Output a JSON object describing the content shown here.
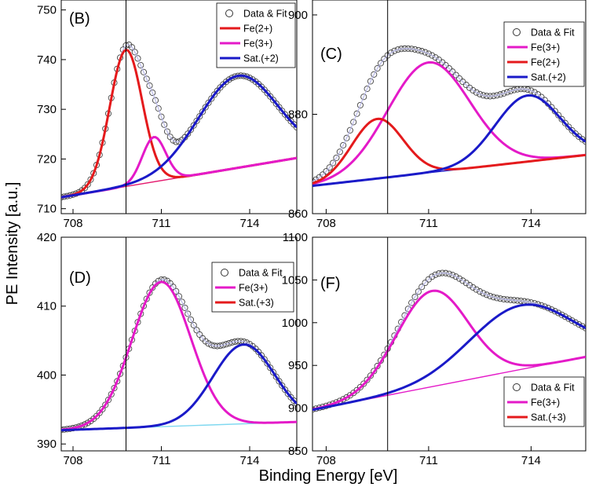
{
  "chart_data": {
    "type": "line",
    "ylabel": "PE Intensity [a.u.]",
    "xlabel": "Binding Energy [eV]",
    "vline_x": 709.8,
    "panels": [
      {
        "id": "B",
        "label": "(B)",
        "xlim": [
          707.6,
          715.6
        ],
        "ylim": [
          709,
          752
        ],
        "xticks": [
          708,
          711,
          714
        ],
        "yticks": [
          710,
          720,
          730,
          740,
          750
        ],
        "legend": [
          {
            "kind": "marker",
            "label": "Data & Fit"
          },
          {
            "kind": "line",
            "label": "Fe(2+)",
            "color": "#e41a1c"
          },
          {
            "kind": "line",
            "label": "Fe(3+)",
            "color": "#e41ac8"
          },
          {
            "kind": "line",
            "label": "Sat.(+2)",
            "color": "#1a1ac8"
          }
        ],
        "background": {
          "x": [
            707.6,
            715.6
          ],
          "y": [
            712.3,
            720.2
          ],
          "color": "#e41a6e"
        },
        "peaks": [
          {
            "name": "Fe(2+)",
            "center": 709.8,
            "sigma": 0.55,
            "amp": 27.5,
            "color": "#e41a1c"
          },
          {
            "name": "Fe(3+)",
            "center": 710.75,
            "sigma": 0.4,
            "amp": 9.0,
            "color": "#e41ac8"
          },
          {
            "name": "Sat.(+2)",
            "center": 713.6,
            "sigma": 1.35,
            "amp": 18.5,
            "color": "#1a1ac8"
          }
        ]
      },
      {
        "id": "C",
        "label": "(C)",
        "xlim": [
          707.6,
          715.6
        ],
        "ylim": [
          860,
          903
        ],
        "xticks": [
          708,
          711,
          714
        ],
        "yticks": [
          860,
          880,
          900
        ],
        "legend": [
          {
            "kind": "marker",
            "label": "Data & Fit"
          },
          {
            "kind": "line",
            "label": "Fe(3+)",
            "color": "#e41ac8"
          },
          {
            "kind": "line",
            "label": "Fe(2+)",
            "color": "#e41a1c"
          },
          {
            "kind": "line",
            "label": "Sat.(+2)",
            "color": "#1a1ac8"
          }
        ],
        "background": {
          "x": [
            707.6,
            715.6
          ],
          "y": [
            865.6,
            871.8
          ],
          "color": "#1a1ac8"
        },
        "peaks": [
          {
            "name": "Fe(3+)",
            "center": 711.0,
            "sigma": 1.2,
            "amp": 22.2,
            "color": "#e41ac8"
          },
          {
            "name": "Fe(2+)",
            "center": 709.5,
            "sigma": 0.75,
            "amp": 12.0,
            "color": "#e41a1c"
          },
          {
            "name": "Sat.(+2)",
            "center": 713.9,
            "sigma": 0.95,
            "amp": 13.3,
            "color": "#1a1ac8"
          }
        ]
      },
      {
        "id": "D",
        "label": "(D)",
        "xlim": [
          707.6,
          715.6
        ],
        "ylim": [
          389,
          420
        ],
        "xticks": [
          708,
          711,
          714
        ],
        "yticks": [
          390,
          400,
          410,
          420
        ],
        "legend": [
          {
            "kind": "marker",
            "label": "Data & Fit"
          },
          {
            "kind": "line",
            "label": "Fe(3+)",
            "color": "#e41ac8"
          },
          {
            "kind": "line",
            "label": "Sat.(+3)",
            "color": "#e41a1c"
          }
        ],
        "background": {
          "x": [
            707.6,
            715.6
          ],
          "y": [
            392.0,
            393.2
          ],
          "color": "#7fd8f0"
        },
        "peaks": [
          {
            "name": "Fe(3+)",
            "center": 711.0,
            "sigma": 1.0,
            "amp": 21.0,
            "color": "#e41ac8"
          },
          {
            "name": "Sat.",
            "center": 713.8,
            "sigma": 1.05,
            "amp": 11.5,
            "color": "#1a1ac8"
          }
        ]
      },
      {
        "id": "F",
        "label": "(F)",
        "xlim": [
          707.6,
          715.6
        ],
        "ylim": [
          850,
          1100
        ],
        "xticks": [
          708,
          711,
          714
        ],
        "yticks": [
          850,
          900,
          950,
          1000,
          1050,
          1100
        ],
        "legend": [
          {
            "kind": "marker",
            "label": "Data & Fit"
          },
          {
            "kind": "line",
            "label": "Fe(3+)",
            "color": "#e41ac8"
          },
          {
            "kind": "line",
            "label": "Sat.(+3)",
            "color": "#e41a1c"
          }
        ],
        "background": {
          "x": [
            707.6,
            715.6
          ],
          "y": [
            898,
            960
          ],
          "color": "#e41ac8"
        },
        "peaks": [
          {
            "name": "Fe(3+)",
            "center": 711.1,
            "sigma": 1.05,
            "amp": 112,
            "color": "#e41ac8"
          },
          {
            "name": "Sat.",
            "center": 713.7,
            "sigma": 1.5,
            "amp": 75,
            "color": "#1a1ac8"
          }
        ]
      }
    ]
  }
}
